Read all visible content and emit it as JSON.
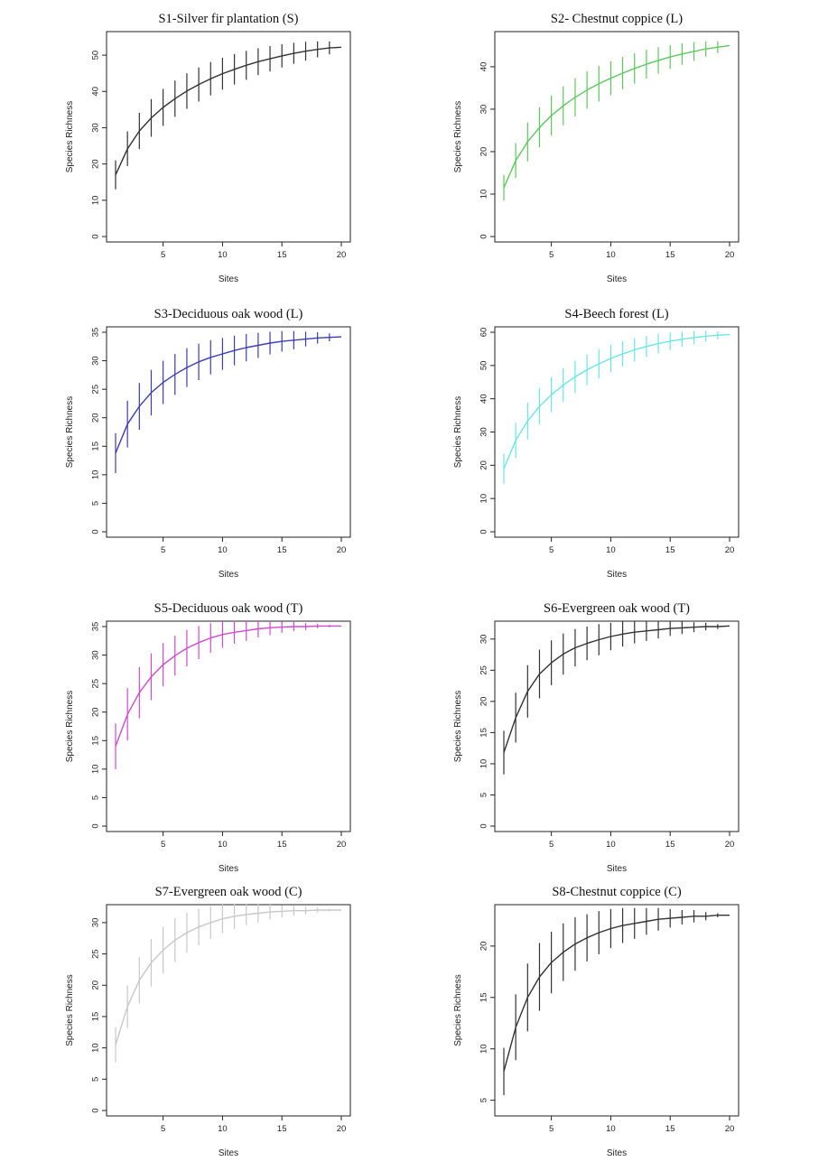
{
  "figure": {
    "xlabel": "Sites",
    "ylabel": "Species Richness"
  },
  "chart_data": [
    {
      "type": "line",
      "title": "S1-Silver fir plantation (S)",
      "color": "#333333",
      "xlabel": "Sites",
      "ylabel": "Species Richness",
      "xlim": [
        1,
        20
      ],
      "ylim": [
        0,
        55
      ],
      "xticks": [
        5,
        10,
        15,
        20
      ],
      "yticks": [
        0,
        10,
        20,
        30,
        40,
        50
      ],
      "error_bars": true,
      "x": [
        1,
        2,
        3,
        4,
        5,
        6,
        7,
        8,
        9,
        10,
        11,
        12,
        13,
        14,
        15,
        16,
        17,
        18,
        19,
        20
      ],
      "y": [
        17.0,
        24.2,
        29.1,
        32.7,
        35.6,
        38.0,
        40.1,
        41.9,
        43.5,
        44.9,
        46.1,
        47.2,
        48.2,
        49.0,
        49.8,
        50.5,
        51.1,
        51.6,
        52.0,
        52.2
      ],
      "sd": [
        4.0,
        4.8,
        5.0,
        5.2,
        5.1,
        5.0,
        4.9,
        4.7,
        4.6,
        4.4,
        4.2,
        4.0,
        3.7,
        3.5,
        3.2,
        2.9,
        2.6,
        2.2,
        1.8,
        0.0
      ]
    },
    {
      "type": "line",
      "title": "S2- Chestnut coppice (L)",
      "color": "#5cc85c",
      "xlabel": "Sites",
      "ylabel": "Species Richness",
      "xlim": [
        1,
        20
      ],
      "ylim": [
        0,
        47
      ],
      "xticks": [
        5,
        10,
        15,
        20
      ],
      "yticks": [
        0,
        10,
        20,
        30,
        40
      ],
      "error_bars": true,
      "x": [
        1,
        2,
        3,
        4,
        5,
        6,
        7,
        8,
        9,
        10,
        11,
        12,
        13,
        14,
        15,
        16,
        17,
        18,
        19,
        20
      ],
      "y": [
        11.5,
        17.9,
        22.3,
        25.7,
        28.5,
        30.8,
        32.8,
        34.5,
        36.0,
        37.3,
        38.5,
        39.6,
        40.6,
        41.5,
        42.3,
        43.0,
        43.6,
        44.2,
        44.6,
        45.0
      ],
      "sd": [
        3.0,
        4.1,
        4.6,
        4.7,
        4.7,
        4.6,
        4.5,
        4.4,
        4.2,
        4.0,
        3.8,
        3.6,
        3.4,
        3.1,
        2.8,
        2.5,
        2.2,
        1.8,
        1.4,
        0.0
      ]
    },
    {
      "type": "line",
      "title": "S3-Deciduous oak wood (L)",
      "color": "#3c3cb4",
      "xlabel": "Sites",
      "ylabel": "Species Richness",
      "xlim": [
        1,
        20
      ],
      "ylim": [
        0,
        35
      ],
      "xticks": [
        5,
        10,
        15,
        20
      ],
      "yticks": [
        0,
        5,
        10,
        15,
        20,
        25,
        30,
        35
      ],
      "error_bars": true,
      "x": [
        1,
        2,
        3,
        4,
        5,
        6,
        7,
        8,
        9,
        10,
        11,
        12,
        13,
        14,
        15,
        16,
        17,
        18,
        19,
        20
      ],
      "y": [
        13.8,
        18.9,
        22.0,
        24.4,
        26.2,
        27.6,
        28.8,
        29.8,
        30.6,
        31.2,
        31.8,
        32.3,
        32.7,
        33.1,
        33.4,
        33.6,
        33.8,
        34.0,
        34.1,
        34.2
      ],
      "sd": [
        3.5,
        4.1,
        4.1,
        4.0,
        3.8,
        3.6,
        3.4,
        3.2,
        3.0,
        2.8,
        2.6,
        2.4,
        2.2,
        2.0,
        1.8,
        1.6,
        1.3,
        1.0,
        0.7,
        0.0
      ]
    },
    {
      "type": "line",
      "title": "S4-Beech forest (L)",
      "color": "#6ae6e6",
      "xlabel": "Sites",
      "ylabel": "Species Richness",
      "xlim": [
        1,
        20
      ],
      "ylim": [
        0,
        60
      ],
      "xticks": [
        5,
        10,
        15,
        20
      ],
      "yticks": [
        0,
        10,
        20,
        30,
        40,
        50,
        60
      ],
      "error_bars": true,
      "x": [
        1,
        2,
        3,
        4,
        5,
        6,
        7,
        8,
        9,
        10,
        11,
        12,
        13,
        14,
        15,
        16,
        17,
        18,
        19,
        20
      ],
      "y": [
        19.0,
        27.5,
        33.3,
        37.7,
        41.2,
        44.1,
        46.6,
        48.7,
        50.5,
        52.1,
        53.5,
        54.7,
        55.7,
        56.6,
        57.3,
        57.9,
        58.4,
        58.8,
        59.1,
        59.3
      ],
      "sd": [
        4.5,
        5.3,
        5.5,
        5.5,
        5.3,
        5.1,
        4.9,
        4.6,
        4.4,
        4.1,
        3.8,
        3.5,
        3.2,
        2.9,
        2.6,
        2.3,
        2.0,
        1.6,
        1.2,
        0.0
      ]
    },
    {
      "type": "line",
      "title": "S5-Deciduous oak wood (T)",
      "color": "#d04ad0",
      "xlabel": "Sites",
      "ylabel": "Species Richness",
      "xlim": [
        1,
        20
      ],
      "ylim": [
        0,
        35
      ],
      "xticks": [
        5,
        10,
        15,
        20
      ],
      "yticks": [
        0,
        5,
        10,
        15,
        20,
        25,
        30,
        35
      ],
      "error_bars": true,
      "x": [
        1,
        2,
        3,
        4,
        5,
        6,
        7,
        8,
        9,
        10,
        11,
        12,
        13,
        14,
        15,
        16,
        17,
        18,
        19,
        20
      ],
      "y": [
        14.0,
        19.6,
        23.4,
        26.2,
        28.3,
        29.9,
        31.2,
        32.2,
        33.0,
        33.6,
        34.0,
        34.3,
        34.6,
        34.8,
        34.9,
        35.0,
        35.0,
        35.1,
        35.1,
        35.1
      ],
      "sd": [
        4.0,
        4.6,
        4.5,
        4.1,
        3.8,
        3.5,
        3.2,
        2.9,
        2.6,
        2.3,
        2.0,
        1.8,
        1.5,
        1.3,
        1.0,
        0.8,
        0.6,
        0.4,
        0.2,
        0.0
      ]
    },
    {
      "type": "line",
      "title": "S6-Evergreen oak wood (T)",
      "color": "#333333",
      "xlabel": "Sites",
      "ylabel": "Species Richness",
      "xlim": [
        1,
        20
      ],
      "ylim": [
        0,
        32
      ],
      "xticks": [
        5,
        10,
        15,
        20
      ],
      "yticks": [
        0,
        5,
        10,
        15,
        20,
        25,
        30
      ],
      "error_bars": true,
      "x": [
        1,
        2,
        3,
        4,
        5,
        6,
        7,
        8,
        9,
        10,
        11,
        12,
        13,
        14,
        15,
        16,
        17,
        18,
        19,
        20
      ],
      "y": [
        11.8,
        17.4,
        21.6,
        24.4,
        26.2,
        27.6,
        28.6,
        29.3,
        29.9,
        30.4,
        30.8,
        31.1,
        31.3,
        31.5,
        31.7,
        31.8,
        31.9,
        32.0,
        32.0,
        32.1
      ],
      "sd": [
        3.5,
        4.0,
        4.2,
        3.9,
        3.6,
        3.3,
        3.0,
        2.7,
        2.5,
        2.2,
        2.0,
        1.8,
        1.6,
        1.4,
        1.2,
        1.0,
        0.8,
        0.6,
        0.4,
        0.0
      ]
    },
    {
      "type": "line",
      "title": "S7-Evergreen oak wood (C)",
      "color": "#c8c8c8",
      "xlabel": "Sites",
      "ylabel": "Species Richness",
      "xlim": [
        1,
        20
      ],
      "ylim": [
        0,
        32
      ],
      "xticks": [
        5,
        10,
        15,
        20
      ],
      "yticks": [
        0,
        5,
        10,
        15,
        20,
        25,
        30
      ],
      "error_bars": true,
      "x": [
        1,
        2,
        3,
        4,
        5,
        6,
        7,
        8,
        9,
        10,
        11,
        12,
        13,
        14,
        15,
        16,
        17,
        18,
        19,
        20
      ],
      "y": [
        10.5,
        16.6,
        20.8,
        23.6,
        25.6,
        27.2,
        28.4,
        29.3,
        30.0,
        30.6,
        31.0,
        31.3,
        31.5,
        31.7,
        31.8,
        31.9,
        31.9,
        32.0,
        32.0,
        32.0
      ],
      "sd": [
        2.8,
        3.4,
        3.7,
        3.8,
        3.7,
        3.5,
        3.2,
        2.9,
        2.6,
        2.3,
        2.0,
        1.7,
        1.5,
        1.2,
        1.0,
        0.8,
        0.6,
        0.4,
        0.2,
        0.0
      ]
    },
    {
      "type": "line",
      "title": "S8-Chestnut coppice (C)",
      "color": "#333333",
      "xlabel": "Sites",
      "ylabel": "Species Richness",
      "xlim": [
        1,
        20
      ],
      "ylim": [
        4,
        23.5
      ],
      "xticks": [
        5,
        10,
        15,
        20
      ],
      "yticks": [
        5,
        10,
        15,
        20
      ],
      "error_bars": true,
      "x": [
        1,
        2,
        3,
        4,
        5,
        6,
        7,
        8,
        9,
        10,
        11,
        12,
        13,
        14,
        15,
        16,
        17,
        18,
        19,
        20
      ],
      "y": [
        7.8,
        12.1,
        15.0,
        17.0,
        18.4,
        19.4,
        20.2,
        20.8,
        21.3,
        21.7,
        22.0,
        22.2,
        22.4,
        22.6,
        22.7,
        22.8,
        22.9,
        22.9,
        23.0,
        23.0
      ],
      "sd": [
        2.3,
        3.2,
        3.3,
        3.3,
        3.0,
        2.8,
        2.6,
        2.3,
        2.1,
        1.9,
        1.7,
        1.5,
        1.3,
        1.1,
        0.9,
        0.7,
        0.6,
        0.4,
        0.2,
        0.0
      ]
    }
  ]
}
